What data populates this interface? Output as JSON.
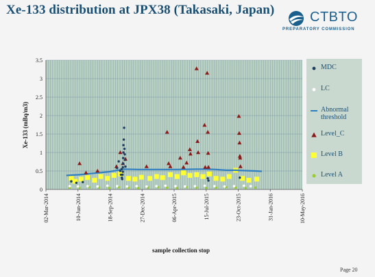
{
  "slide": {
    "title": "Xe-133 distribution at JPX38 (Takasaki, Japan)",
    "page": "Page 20"
  },
  "logo": {
    "name": "CTBTO",
    "subtitle": "PREPARATORY COMMISSION"
  },
  "colors": {
    "plot_bg": "#b9d1c3",
    "grid": "#7f98a5",
    "mdc": "#1f3d5c",
    "lc": "#ffffff",
    "threshold": "#2e7fc2",
    "level_c": "#8b1a1a",
    "level_b": "#ffff33",
    "level_a": "#9acd32"
  },
  "chart_data": {
    "type": "scatter",
    "title": "",
    "xlabel": "sample collection stop",
    "ylabel": "Xe-133 (mBq/m3)",
    "ylim": [
      0,
      3.5
    ],
    "yticks": [
      "0",
      "0.5",
      "1",
      "1.5",
      "2",
      "2.5",
      "3",
      "3.5"
    ],
    "xticks": [
      "02-Mar-2014",
      "10-Jun-2014",
      "18-Sep-2014",
      "27-Dec-2014",
      "06-Apr-2015",
      "15-Jul-2015",
      "23-Oct-2015",
      "31-Jan-2016",
      "10-May-2016"
    ],
    "xlim": [
      "2014-03-02",
      "2016-05-10"
    ],
    "grid": true,
    "legend_position": "right",
    "series": [
      {
        "name": "MDC",
        "marker": "dot",
        "points": [
          [
            "2014-05-20",
            0.22
          ],
          [
            "2014-06-05",
            0.18
          ],
          [
            "2014-06-25",
            0.2
          ],
          [
            "2014-10-10",
            0.58
          ],
          [
            "2014-10-15",
            0.76
          ],
          [
            "2014-10-20",
            0.5
          ],
          [
            "2014-10-22",
            0.4
          ],
          [
            "2014-10-24",
            0.55
          ],
          [
            "2014-10-25",
            0.32
          ],
          [
            "2014-10-26",
            0.28
          ],
          [
            "2014-10-27",
            0.4
          ],
          [
            "2014-10-28",
            0.6
          ],
          [
            "2014-10-28",
            0.48
          ],
          [
            "2014-10-29",
            0.85
          ],
          [
            "2014-10-29",
            0.7
          ],
          [
            "2014-10-30",
            1.0
          ],
          [
            "2014-10-30",
            1.2
          ],
          [
            "2014-10-31",
            1.35
          ],
          [
            "2014-11-01",
            1.67
          ],
          [
            "2014-11-02",
            1.1
          ],
          [
            "2014-11-03",
            0.95
          ],
          [
            "2014-11-04",
            0.8
          ],
          [
            "2014-11-05",
            0.62
          ],
          [
            "2015-07-20",
            0.3
          ],
          [
            "2015-07-22",
            0.24
          ],
          [
            "2015-10-28",
            0.32
          ]
        ]
      },
      {
        "name": "LC",
        "marker": "dot",
        "points": [
          [
            "2014-05-15",
            0.09
          ],
          [
            "2014-06-10",
            0.08
          ],
          [
            "2014-07-10",
            0.09
          ],
          [
            "2014-08-10",
            0.08
          ],
          [
            "2014-09-10",
            0.1
          ],
          [
            "2014-10-10",
            0.09
          ],
          [
            "2014-11-10",
            0.08
          ],
          [
            "2014-12-10",
            0.09
          ],
          [
            "2015-01-10",
            0.08
          ],
          [
            "2015-02-10",
            0.09
          ],
          [
            "2015-03-10",
            0.1
          ],
          [
            "2015-04-10",
            0.09
          ],
          [
            "2015-05-10",
            0.08
          ],
          [
            "2015-06-10",
            0.09
          ],
          [
            "2015-07-10",
            0.1
          ],
          [
            "2015-08-10",
            0.09
          ],
          [
            "2015-09-10",
            0.08
          ],
          [
            "2015-10-10",
            0.09
          ],
          [
            "2015-11-10",
            0.1
          ],
          [
            "2015-12-01",
            0.09
          ]
        ]
      },
      {
        "name": "Abnormal threshold",
        "label_lines": [
          "Abnormal",
          "threshold"
        ],
        "marker": "line",
        "points": [
          [
            "2014-05-05",
            0.38
          ],
          [
            "2014-06-15",
            0.4
          ],
          [
            "2014-08-01",
            0.44
          ],
          [
            "2014-09-15",
            0.48
          ],
          [
            "2014-11-01",
            0.55
          ],
          [
            "2014-12-15",
            0.54
          ],
          [
            "2015-02-15",
            0.54
          ],
          [
            "2015-04-15",
            0.54
          ],
          [
            "2015-06-15",
            0.55
          ],
          [
            "2015-07-15",
            0.55
          ],
          [
            "2015-08-15",
            0.54
          ],
          [
            "2015-09-15",
            0.52
          ],
          [
            "2015-10-15",
            0.52
          ],
          [
            "2015-11-15",
            0.51
          ],
          [
            "2015-12-15",
            0.5
          ],
          [
            "2016-01-05",
            0.49
          ]
        ]
      },
      {
        "name": "Level_C",
        "marker": "triangle",
        "points": [
          [
            "2014-06-15",
            0.7
          ],
          [
            "2014-07-05",
            0.45
          ],
          [
            "2014-08-10",
            0.5
          ],
          [
            "2014-10-08",
            0.62
          ],
          [
            "2014-10-20",
            1.0
          ],
          [
            "2014-10-28",
            0.7
          ],
          [
            "2014-11-05",
            0.82
          ],
          [
            "2015-01-10",
            0.62
          ],
          [
            "2015-03-15",
            1.55
          ],
          [
            "2015-03-20",
            0.7
          ],
          [
            "2015-03-25",
            0.62
          ],
          [
            "2015-04-25",
            0.85
          ],
          [
            "2015-05-05",
            0.6
          ],
          [
            "2015-05-15",
            0.72
          ],
          [
            "2015-05-25",
            1.08
          ],
          [
            "2015-05-27",
            0.96
          ],
          [
            "2015-06-15",
            3.27
          ],
          [
            "2015-06-18",
            1.3
          ],
          [
            "2015-06-20",
            1.0
          ],
          [
            "2015-07-10",
            1.74
          ],
          [
            "2015-07-12",
            0.6
          ],
          [
            "2015-07-18",
            3.15
          ],
          [
            "2015-07-20",
            1.55
          ],
          [
            "2015-07-21",
            0.98
          ],
          [
            "2015-07-22",
            0.6
          ],
          [
            "2015-10-25",
            1.98
          ],
          [
            "2015-10-26",
            1.52
          ],
          [
            "2015-10-27",
            1.26
          ],
          [
            "2015-10-28",
            0.9
          ],
          [
            "2015-10-29",
            0.85
          ],
          [
            "2015-10-30",
            0.62
          ]
        ]
      },
      {
        "name": "Level B",
        "marker": "square",
        "points": [
          [
            "2014-05-20",
            0.3
          ],
          [
            "2014-06-01",
            0.22
          ],
          [
            "2014-06-20",
            0.28
          ],
          [
            "2014-07-10",
            0.32
          ],
          [
            "2014-08-01",
            0.25
          ],
          [
            "2014-08-20",
            0.35
          ],
          [
            "2014-09-10",
            0.3
          ],
          [
            "2014-09-30",
            0.38
          ],
          [
            "2014-10-20",
            0.42
          ],
          [
            "2014-11-15",
            0.3
          ],
          [
            "2014-12-05",
            0.28
          ],
          [
            "2014-12-25",
            0.33
          ],
          [
            "2015-01-20",
            0.3
          ],
          [
            "2015-02-10",
            0.35
          ],
          [
            "2015-03-01",
            0.32
          ],
          [
            "2015-03-25",
            0.4
          ],
          [
            "2015-04-15",
            0.35
          ],
          [
            "2015-05-05",
            0.45
          ],
          [
            "2015-05-25",
            0.38
          ],
          [
            "2015-06-15",
            0.4
          ],
          [
            "2015-07-05",
            0.35
          ],
          [
            "2015-07-25",
            0.42
          ],
          [
            "2015-08-15",
            0.3
          ],
          [
            "2015-09-05",
            0.28
          ],
          [
            "2015-09-25",
            0.35
          ],
          [
            "2015-10-15",
            0.52
          ],
          [
            "2015-11-05",
            0.3
          ],
          [
            "2015-11-25",
            0.25
          ],
          [
            "2015-12-20",
            0.28
          ]
        ]
      },
      {
        "name": "Level A",
        "marker": "dot",
        "points": [
          [
            "2014-05-15",
            0.05
          ],
          [
            "2014-06-15",
            0.04
          ],
          [
            "2014-07-15",
            0.06
          ],
          [
            "2014-08-15",
            0.05
          ],
          [
            "2014-09-15",
            0.04
          ],
          [
            "2014-10-15",
            0.06
          ],
          [
            "2014-11-15",
            0.05
          ],
          [
            "2014-12-15",
            0.04
          ],
          [
            "2015-01-15",
            0.05
          ],
          [
            "2015-02-15",
            0.06
          ],
          [
            "2015-03-15",
            0.05
          ],
          [
            "2015-04-15",
            0.04
          ],
          [
            "2015-05-15",
            0.06
          ],
          [
            "2015-06-15",
            0.05
          ],
          [
            "2015-07-15",
            0.04
          ],
          [
            "2015-08-15",
            0.05
          ],
          [
            "2015-09-15",
            0.06
          ],
          [
            "2015-10-15",
            0.05
          ],
          [
            "2015-11-15",
            0.04
          ],
          [
            "2015-12-15",
            0.05
          ]
        ]
      }
    ]
  }
}
